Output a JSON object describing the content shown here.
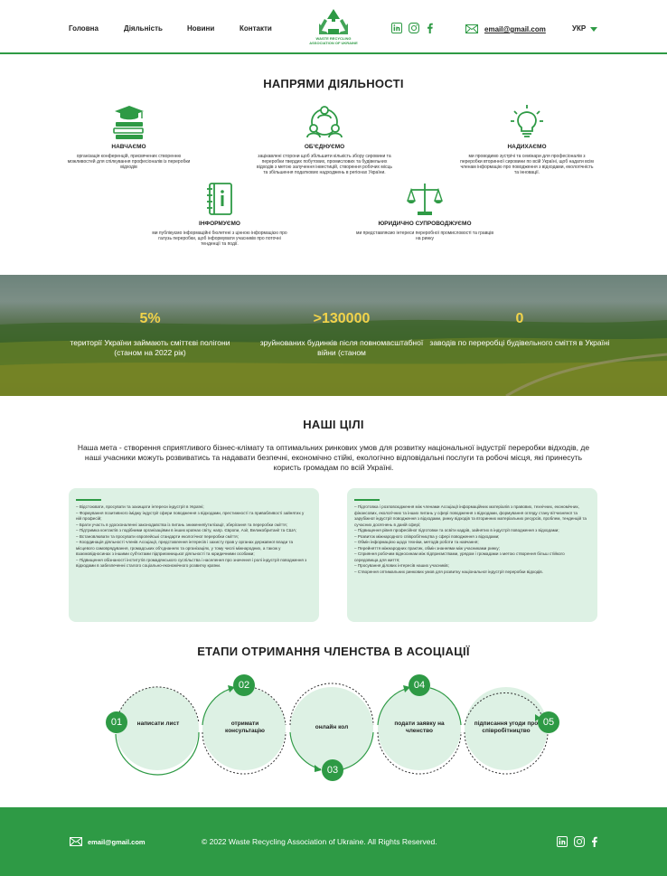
{
  "nav": {
    "items": [
      "Головна",
      "Діяльність",
      "Новини",
      "Контакти"
    ]
  },
  "logo": {
    "line1": "WASTE RECYCLING",
    "line2": "ASSOCIATION OF UKRAINE"
  },
  "header": {
    "email": "email@gmail.com",
    "language": "УКР"
  },
  "colors": {
    "brand": "#2e9a45",
    "accent_yellow": "#f2d34a",
    "card_bg": "#ddf1e4"
  },
  "icons": [
    "linkedin-icon",
    "instagram-icon",
    "facebook-icon",
    "mail-icon",
    "dropdown-caret-icon"
  ],
  "directions": {
    "title": "НАПРЯМИ ДІЯЛЬНОСТІ",
    "items": [
      {
        "title": "НАВЧАЄМО",
        "icon": "graduation-books-icon",
        "desc": "організація конференцій, присвячених створенню можливостей для спілкування професіоналів із переробки відходів"
      },
      {
        "title": "ОБ'ЄДНУЄМО",
        "icon": "people-network-icon",
        "desc": "зацікавлені сторони щоб збільшити кількість збору сировини та переробки твердих побутових, промислових та будівельних відходів з метою залучення інвестицій, створення робочих місць та збільшення податкових надходжень в регіонах України."
      },
      {
        "title": "НАДИХАЄМО",
        "icon": "lightbulb-icon",
        "desc": "ми проводимо зустрічі та семінари для професіоналів з переробки вторинної сировини по всій Україні, щоб надати всім членам інформацію про поводження з відходами, екологічність та інновації."
      },
      {
        "title": "ІНФОРМУЄМО",
        "icon": "notebook-icon",
        "desc": "ми публікуємо інформаційні бюлетені з цінною інформацією про галузь переробки, щоб інформувати учасників про поточні тенденції та події."
      },
      {
        "title": "ЮРИДИЧНО СУПРОВОДЖУЄМО",
        "icon": "scales-icon",
        "desc": "ми представляємо інтереси переробної промисловості та гравців на ринку"
      }
    ]
  },
  "stats": [
    {
      "number": "5%",
      "label": "території України займають сміттєві полігони (станом на 2022 рік)"
    },
    {
      "number": ">130000",
      "label": "зруйнованих будинків після повномасштабної війни (станом"
    },
    {
      "number": "0",
      "label": "заводів по переробці будівельного сміття в Україні"
    }
  ],
  "goals": {
    "title": "НАШІ ЦІЛІ",
    "mission": "Наша мета - створення сприятливого бізнес-клімату та оптимальних ринкових умов для розвитку національної індустрії переробки відходів, де наші учасники можуть розвиватись та надавати безпечні, економічно стійкі, екологічно відповідальні послуги та робочі місця, які принесуть користь громадам по всій Україні.",
    "left": [
      "– Відстоювати, просувати та захищати інтереси індустрії в Україні;",
      "– Формування позитивного іміджу індустрії сфери поводження з відходами, престижності та привабливості зайнятих у ній професій;",
      "– Брати участь в удосконаленні законодавства із питань зниження/утилізації, зберігання та переробки сміття;",
      "– Підтримка контактів з подібними організаціями в інших країнах світу, напр. Європи, Азії, Великобританії та США;",
      "– Встановлювати та просувати європейські стандарти екологічної переробки сміття;",
      "– Координація діяльності членів Асоціації, представлення інтересів і захисту прав у органах державної влади та місцевого самоврядування, громадських об'єднаннях та організаціях, у тому числі міжнародних, а також у взаємовідносинах з іншими суб'єктами підприємницької діяльності та юридичними особами;",
      "– Підвищення обізнаності інститутів громадянського суспільства і населення про значення і ролі індустрії поводження з відходами в забезпеченні сталого соціально-економічного розвитку країни."
    ],
    "right": [
      "– Підготовка і розповсюдження між членами Асоціації інформаційних матеріалів з правових, технічних, економічних, фінансових, екологічних та інших питань у сфері поводження з відходами, формування огляду стану вітчизняної та зарубіжної індустрії поводження з відходами, ринку відходів та вторинних матеріальних ресурсів, проблем, тенденцій та сучасних досягнень в даній сфері;",
      "– Підвищення рівня професійної підготовки та освіти кадрів, зайнятих в індустрії поводження з відходами;",
      "– Розвиток міжнародного співробітництва у сфері поводження з відходами;",
      "– Обмін інформацією щодо техніки, методів роботи та навчання;",
      "– Перейняття міжнародних практик, обмін знаннями між учасниками ринку;",
      "– Сприяння робочим відносинам між підприємствами, урядом і громадами з метою створення більш стійкого середовища для життя;",
      "– Просування ділових інтересів наших учасників;",
      "– Створення оптимальних ринкових умов для розвитку національної індустрії переробки відходів."
    ]
  },
  "membership": {
    "title": "ЕТАПИ ОТРИМАННЯ ЧЛЕНСТВА В АСОЦІАЦІЇ",
    "steps": [
      {
        "num": "01",
        "label": "написати лист"
      },
      {
        "num": "02",
        "label": "отримати консультацію"
      },
      {
        "num": "03",
        "label": "онлайн кол"
      },
      {
        "num": "04",
        "label": "подати заявку на членство"
      },
      {
        "num": "05",
        "label": "підписання угоди про співробітництво"
      }
    ]
  },
  "footer": {
    "email": "email@gmail.com",
    "copyright": "© 2022 Waste Recycling Association of Ukraine. All Rights Reserved."
  }
}
